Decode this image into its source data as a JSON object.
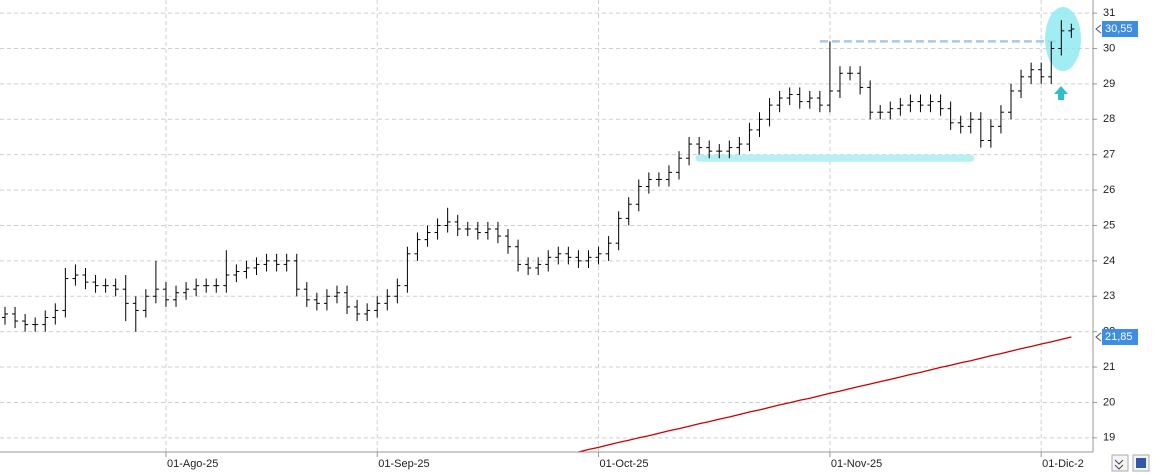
{
  "chart_data": {
    "type": "ohlc",
    "categories": [
      null,
      null,
      null,
      null,
      null,
      null,
      null,
      null,
      null,
      null,
      null,
      null,
      null,
      null,
      null,
      null,
      "01-Ago-25",
      null,
      null,
      null,
      null,
      null,
      null,
      null,
      null,
      null,
      null,
      null,
      null,
      null,
      null,
      null,
      null,
      null,
      null,
      null,
      null,
      "01-Sep-25",
      null,
      null,
      null,
      null,
      null,
      null,
      null,
      null,
      null,
      null,
      null,
      null,
      null,
      null,
      null,
      null,
      null,
      null,
      null,
      null,
      null,
      "01-Oct-25",
      null,
      null,
      null,
      null,
      null,
      null,
      null,
      null,
      null,
      null,
      null,
      null,
      null,
      null,
      null,
      null,
      null,
      null,
      null,
      null,
      null,
      null,
      "01-Nov-25",
      null,
      null,
      null,
      null,
      null,
      null,
      null,
      null,
      null,
      null,
      null,
      null,
      null,
      null,
      null,
      null,
      null,
      null,
      null,
      null,
      "01-Dic-2",
      null,
      null,
      null
    ],
    "ohlc": {
      "color": "#000000",
      "last_label": "30,55",
      "label_color": "#3d8ee0",
      "open": [
        22.4,
        22.5,
        22.3,
        22.2,
        22.2,
        22.4,
        22.6,
        23.5,
        23.6,
        23.4,
        23.3,
        23.3,
        23.2,
        22.8,
        22.6,
        23.0,
        23.2,
        22.9,
        23.1,
        23.2,
        23.3,
        23.3,
        23.3,
        23.6,
        23.7,
        23.8,
        23.9,
        24.0,
        23.9,
        24.0,
        23.2,
        22.9,
        22.8,
        23.0,
        23.1,
        22.7,
        22.5,
        22.6,
        22.8,
        23.0,
        23.3,
        24.2,
        24.6,
        24.8,
        25.0,
        25.1,
        24.9,
        24.9,
        24.8,
        24.9,
        24.7,
        24.4,
        23.9,
        23.8,
        23.9,
        24.1,
        24.2,
        24.1,
        24.0,
        24.1,
        24.2,
        24.5,
        25.2,
        25.6,
        26.1,
        26.3,
        26.3,
        26.5,
        26.9,
        27.3,
        27.2,
        27.1,
        27.1,
        27.2,
        27.3,
        27.7,
        28.0,
        28.4,
        28.6,
        28.7,
        28.5,
        28.6,
        28.4,
        28.8,
        29.3,
        29.3,
        28.9,
        28.2,
        28.2,
        28.3,
        28.4,
        28.5,
        28.4,
        28.5,
        28.3,
        27.9,
        27.8,
        28.0,
        27.4,
        27.8,
        28.2,
        28.8,
        29.2,
        29.4,
        29.2,
        30.0,
        30.5
      ],
      "high": [
        22.7,
        22.7,
        22.5,
        22.4,
        22.6,
        22.8,
        23.8,
        23.9,
        23.8,
        23.6,
        23.5,
        23.5,
        23.6,
        23.0,
        23.2,
        24.0,
        23.4,
        23.3,
        23.4,
        23.5,
        23.5,
        23.5,
        24.3,
        23.9,
        24.0,
        24.1,
        24.2,
        24.2,
        24.2,
        24.2,
        23.4,
        23.1,
        23.2,
        23.3,
        23.3,
        22.9,
        22.8,
        23.0,
        23.2,
        23.5,
        24.4,
        24.8,
        25.0,
        25.2,
        25.5,
        25.3,
        25.1,
        25.1,
        25.1,
        25.1,
        24.9,
        24.6,
        24.1,
        24.1,
        24.3,
        24.4,
        24.4,
        24.3,
        24.3,
        24.4,
        24.7,
        25.4,
        25.8,
        26.3,
        26.5,
        26.5,
        26.7,
        27.1,
        27.5,
        27.5,
        27.4,
        27.3,
        27.4,
        27.5,
        27.9,
        28.2,
        28.6,
        28.8,
        28.9,
        28.9,
        28.8,
        28.8,
        30.2,
        29.5,
        29.5,
        29.5,
        29.1,
        28.4,
        28.5,
        28.6,
        28.7,
        28.7,
        28.7,
        28.7,
        28.5,
        28.1,
        28.2,
        28.2,
        28.0,
        28.4,
        29.0,
        29.4,
        29.6,
        29.6,
        30.2,
        30.8,
        30.7
      ],
      "low": [
        22.2,
        22.1,
        22.0,
        22.0,
        22.0,
        22.2,
        22.4,
        23.3,
        23.2,
        23.1,
        23.1,
        23.0,
        22.3,
        22.0,
        22.4,
        22.8,
        22.7,
        22.7,
        22.9,
        23.0,
        23.1,
        23.1,
        23.1,
        23.4,
        23.5,
        23.6,
        23.7,
        23.7,
        23.7,
        23.0,
        22.7,
        22.6,
        22.6,
        22.8,
        22.5,
        22.3,
        22.3,
        22.4,
        22.6,
        22.8,
        23.1,
        24.0,
        24.4,
        24.6,
        24.8,
        24.7,
        24.7,
        24.6,
        24.6,
        24.5,
        24.2,
        23.7,
        23.6,
        23.6,
        23.7,
        23.9,
        23.9,
        23.8,
        23.8,
        23.9,
        24.0,
        24.3,
        25.0,
        25.4,
        25.9,
        26.1,
        26.1,
        26.3,
        26.7,
        27.0,
        26.9,
        26.9,
        26.9,
        27.0,
        27.1,
        27.5,
        27.8,
        28.2,
        28.4,
        28.3,
        28.3,
        28.2,
        28.2,
        28.6,
        29.1,
        28.7,
        28.0,
        28.0,
        28.0,
        28.1,
        28.2,
        28.2,
        28.2,
        28.1,
        27.7,
        27.6,
        27.6,
        27.2,
        27.2,
        27.6,
        28.0,
        28.6,
        29.0,
        29.0,
        29.0,
        29.8,
        30.3
      ],
      "close": [
        22.5,
        22.3,
        22.2,
        22.2,
        22.4,
        22.6,
        23.5,
        23.6,
        23.4,
        23.3,
        23.3,
        23.2,
        22.8,
        22.6,
        23.0,
        23.2,
        22.9,
        23.1,
        23.2,
        23.3,
        23.3,
        23.3,
        23.6,
        23.7,
        23.8,
        23.9,
        24.0,
        23.9,
        24.0,
        23.2,
        22.9,
        22.8,
        23.0,
        23.1,
        22.7,
        22.5,
        22.6,
        22.8,
        23.0,
        23.3,
        24.2,
        24.6,
        24.8,
        25.0,
        25.1,
        24.9,
        24.9,
        24.8,
        24.9,
        24.7,
        24.4,
        23.9,
        23.8,
        23.9,
        24.1,
        24.2,
        24.1,
        24.0,
        24.1,
        24.2,
        24.5,
        25.2,
        25.6,
        26.1,
        26.3,
        26.3,
        26.5,
        26.9,
        27.3,
        27.2,
        27.1,
        27.1,
        27.2,
        27.3,
        27.7,
        28.0,
        28.4,
        28.6,
        28.7,
        28.5,
        28.6,
        28.4,
        28.8,
        29.3,
        29.3,
        28.9,
        28.2,
        28.2,
        28.3,
        28.4,
        28.5,
        28.4,
        28.5,
        28.3,
        27.9,
        27.8,
        28.0,
        27.4,
        27.8,
        28.2,
        28.8,
        29.2,
        29.4,
        29.2,
        30.0,
        30.5,
        30.55
      ]
    },
    "ma": {
      "color": "#cc0000",
      "last_label": "21,85",
      "label_color": "#3d8ee0",
      "values": [
        null,
        null,
        null,
        null,
        null,
        null,
        null,
        null,
        null,
        null,
        null,
        null,
        null,
        null,
        null,
        null,
        null,
        null,
        null,
        null,
        null,
        null,
        null,
        null,
        null,
        null,
        null,
        null,
        null,
        null,
        null,
        null,
        null,
        null,
        null,
        null,
        null,
        null,
        null,
        null,
        null,
        null,
        null,
        null,
        null,
        null,
        null,
        null,
        null,
        null,
        null,
        null,
        null,
        null,
        null,
        null,
        null,
        18.6,
        18.67,
        18.73,
        18.8,
        18.87,
        18.93,
        19.0,
        19.06,
        19.13,
        19.2,
        19.26,
        19.33,
        19.4,
        19.46,
        19.53,
        19.59,
        19.66,
        19.73,
        19.79,
        19.86,
        19.93,
        19.99,
        20.06,
        20.12,
        20.19,
        20.26,
        20.32,
        20.39,
        20.46,
        20.52,
        20.59,
        20.65,
        20.72,
        20.79,
        20.85,
        20.92,
        20.99,
        21.05,
        21.12,
        21.18,
        21.25,
        21.32,
        21.38,
        21.45,
        21.52,
        21.58,
        21.65,
        21.71,
        21.78,
        21.85
      ]
    },
    "annotations": {
      "resistance": 30.2,
      "resistance_color": "#a8c8e8",
      "support": 26.9,
      "support_color": "#b4f0f4"
    },
    "ylim": [
      18.6,
      31.37
    ],
    "yticks": [
      19,
      20,
      21,
      22,
      23,
      24,
      25,
      26,
      27,
      28,
      29,
      30,
      31
    ],
    "grid": true
  }
}
